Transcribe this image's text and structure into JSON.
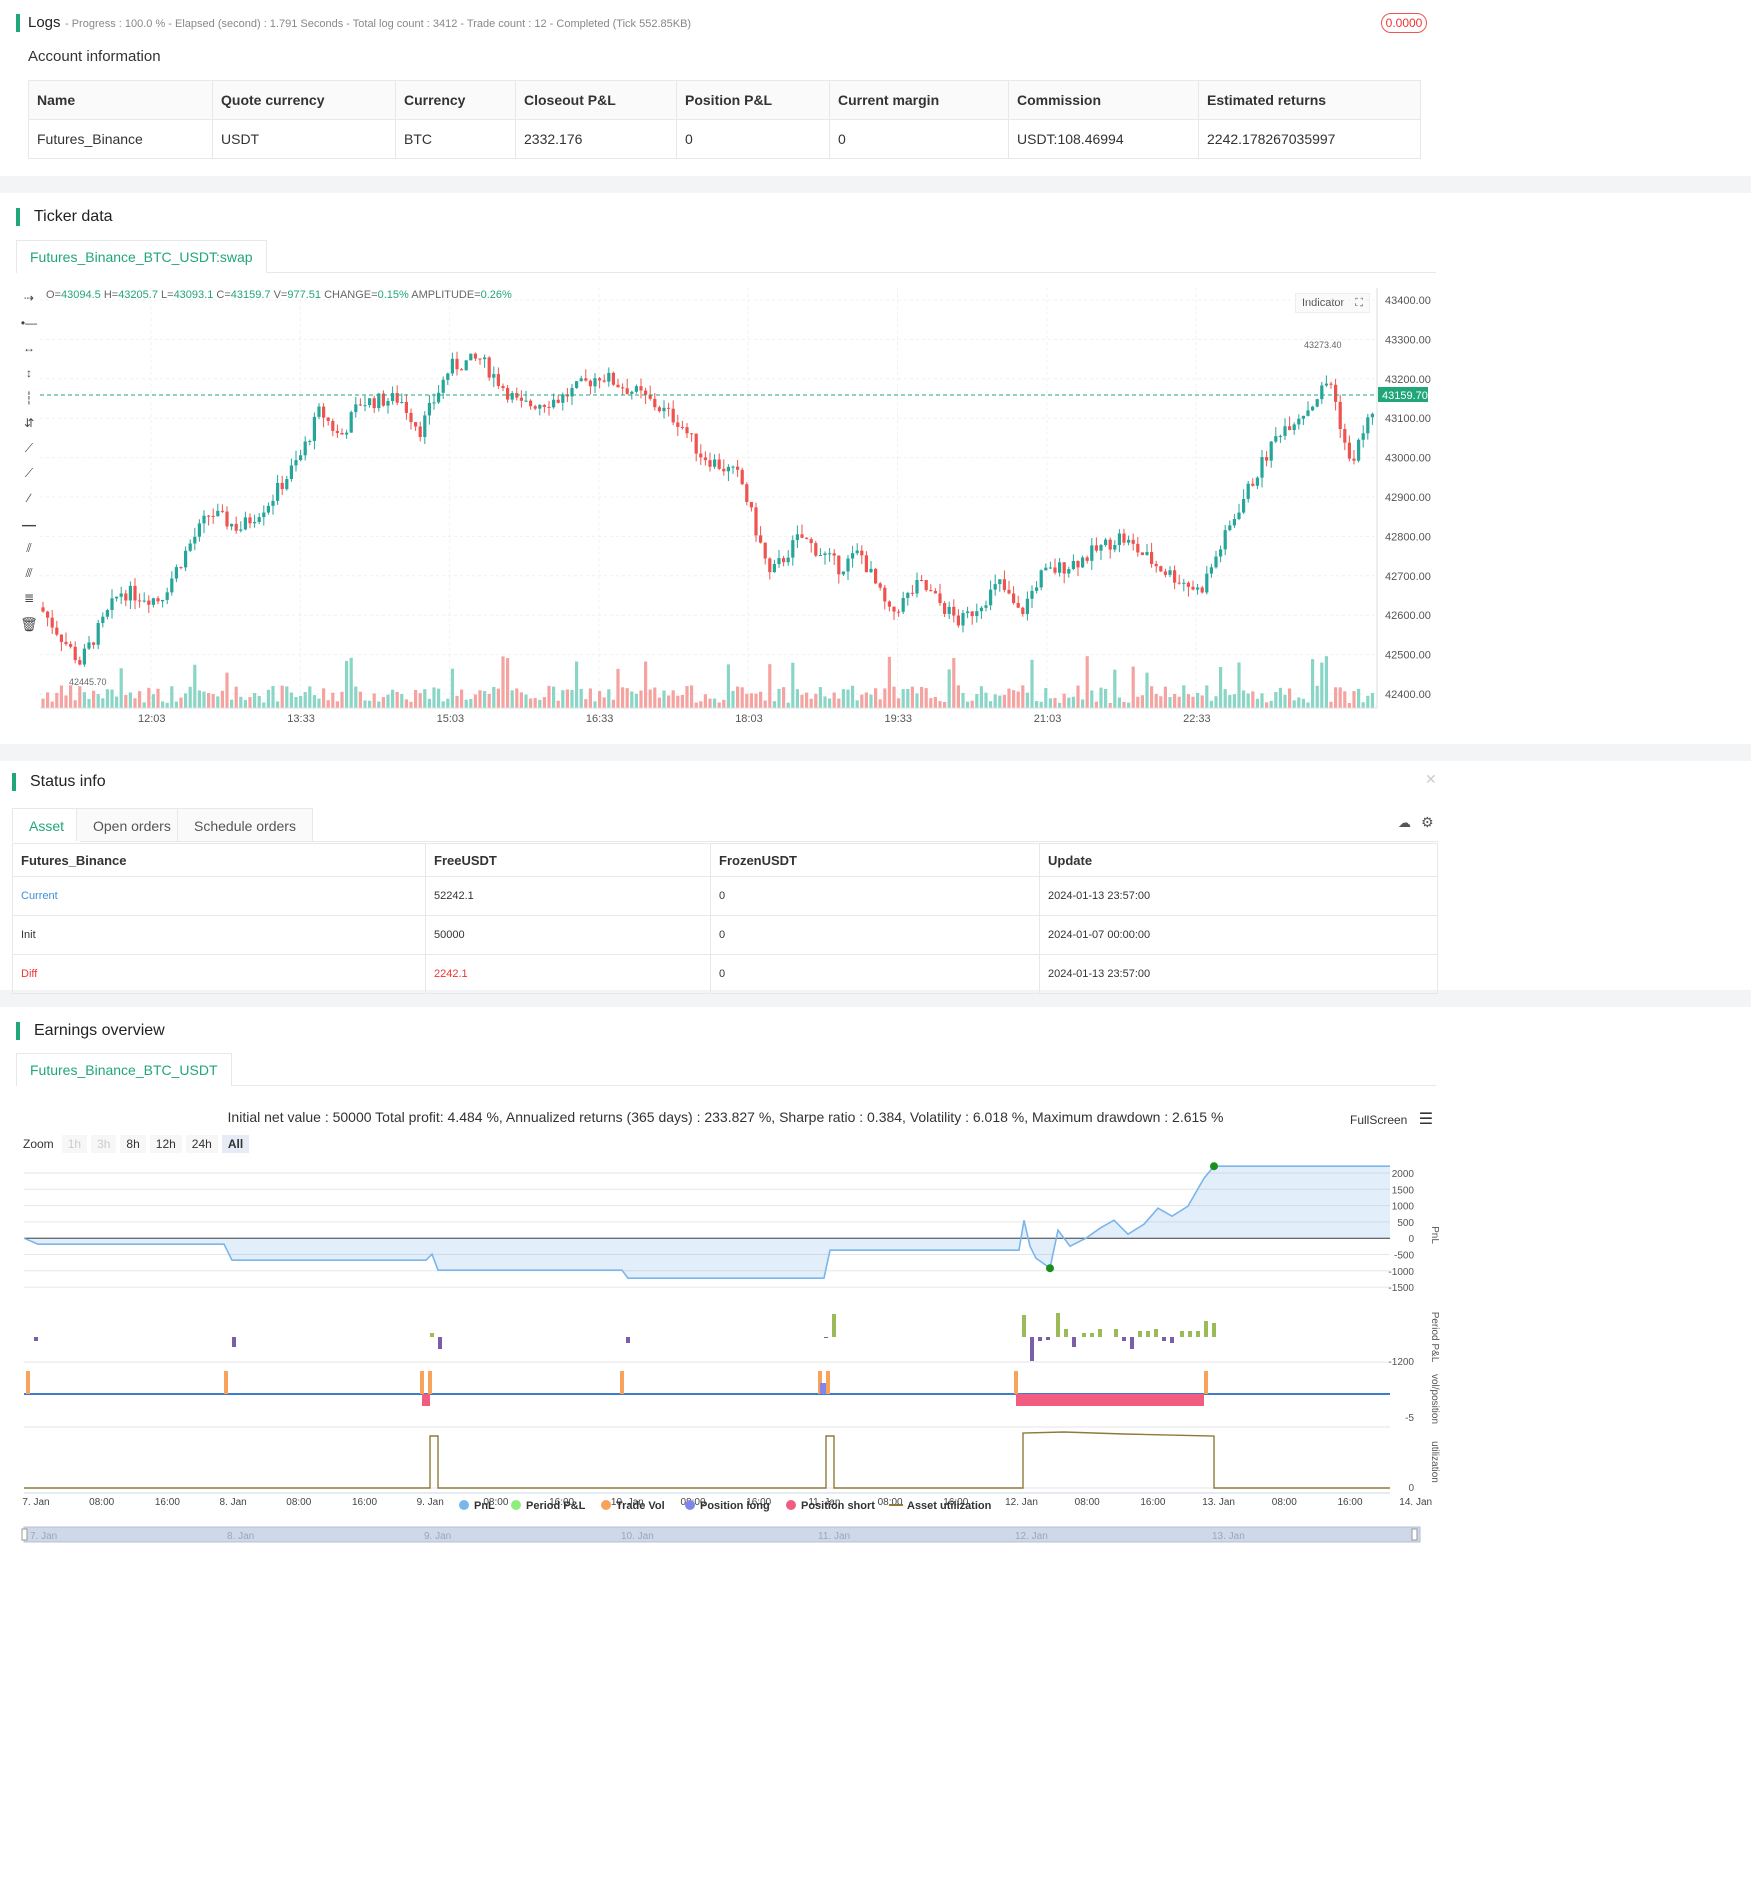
{
  "logs": {
    "title": "Logs",
    "progress_line": "- Progress : 100.0 % - Elapsed (second) : 1.791  Seconds - Total log count : 3412 - Trade count : 12 - Completed (Tick 552.85KB)",
    "badge": "0.0000"
  },
  "account": {
    "title": "Account information",
    "headers": [
      "Name",
      "Quote currency",
      "Currency",
      "Closeout P&L",
      "Position P&L",
      "Current margin",
      "Commission",
      "Estimated returns"
    ],
    "row": [
      "Futures_Binance",
      "USDT",
      "BTC",
      "2332.176",
      "0",
      "0",
      "USDT:108.46994",
      "2242.178267035997"
    ]
  },
  "ticker": {
    "title": "Ticker data",
    "tab": "Futures_Binance_BTC_USDT:swap",
    "ohlc": {
      "O": "43094.5",
      "H": "43205.7",
      "L": "43093.1",
      "C": "43159.7",
      "V": "977.51",
      "change": "0.15%",
      "amplitude": "0.26%"
    },
    "indicator_btn": "Indicator",
    "current_price": "43159.70",
    "high_label": "43273.40",
    "low_label": "42445.70",
    "y_ticks": [
      "43400.00",
      "43300.00",
      "43200.00",
      "43100.00",
      "43000.00",
      "42900.00",
      "42800.00",
      "42700.00",
      "42600.00",
      "42500.00",
      "42400.00"
    ],
    "x_ticks": [
      "12:03",
      "13:33",
      "15:03",
      "16:33",
      "18:03",
      "19:33",
      "21:03",
      "22:33"
    ]
  },
  "status": {
    "title": "Status info",
    "tabs": [
      "Asset",
      "Open orders",
      "Schedule orders"
    ],
    "headers": [
      "Futures_Binance",
      "FreeUSDT",
      "FrozenUSDT",
      "Update"
    ],
    "rows": [
      {
        "name": "Current",
        "free": "52242.1",
        "frozen": "0",
        "update": "2024-01-13 23:57:00"
      },
      {
        "name": "Init",
        "free": "50000",
        "frozen": "0",
        "update": "2024-01-07 00:00:00"
      },
      {
        "name": "Diff",
        "free": "2242.1",
        "frozen": "0",
        "update": "2024-01-13 23:57:00"
      }
    ]
  },
  "earnings": {
    "title": "Earnings overview",
    "tab": "Futures_Binance_BTC_USDT",
    "summary": "Initial net value : 50000  Total profit: 4.484 %, Annualized returns (365 days) : 233.827 %, Sharpe ratio : 0.384, Volatility : 6.018 %, Maximum drawdown : 2.615 %",
    "fullscreen": "FullScreen",
    "zoom_label": "Zoom",
    "zoom_options": [
      "1h",
      "3h",
      "8h",
      "12h",
      "24h",
      "All"
    ],
    "pnl_ticks": [
      "2000",
      "1500",
      "1000",
      "500",
      "0",
      "-500",
      "-1000",
      "-1500"
    ],
    "period_tick": "-1200",
    "vol_tick": "-5",
    "util_tick": "0",
    "axis_labels": [
      "PnL",
      "Period P&L",
      "vol/position",
      "utilization"
    ],
    "x_ticks": [
      "7. Jan",
      "08:00",
      "16:00",
      "8. Jan",
      "08:00",
      "16:00",
      "9. Jan",
      "08:00",
      "16:00",
      "10. Jan",
      "08:00",
      "16:00",
      "11. Jan",
      "08:00",
      "16:00",
      "12. Jan",
      "08:00",
      "16:00",
      "13. Jan",
      "08:00",
      "16:00",
      "14. Jan"
    ],
    "nav_ticks": [
      "7. Jan",
      "8. Jan",
      "9. Jan",
      "10. Jan",
      "11. Jan",
      "12. Jan",
      "13. Jan"
    ],
    "legend": [
      {
        "name": "PnL",
        "color": "#7cb5ec"
      },
      {
        "name": "Period P&L",
        "color": "#90ed7d"
      },
      {
        "name": "Trade Vol",
        "color": "#f7a35c"
      },
      {
        "name": "Position long",
        "color": "#8085e9"
      },
      {
        "name": "Position short",
        "color": "#f15c80"
      },
      {
        "name": "Asset utilization",
        "color": "#8d7a3a"
      }
    ]
  }
}
